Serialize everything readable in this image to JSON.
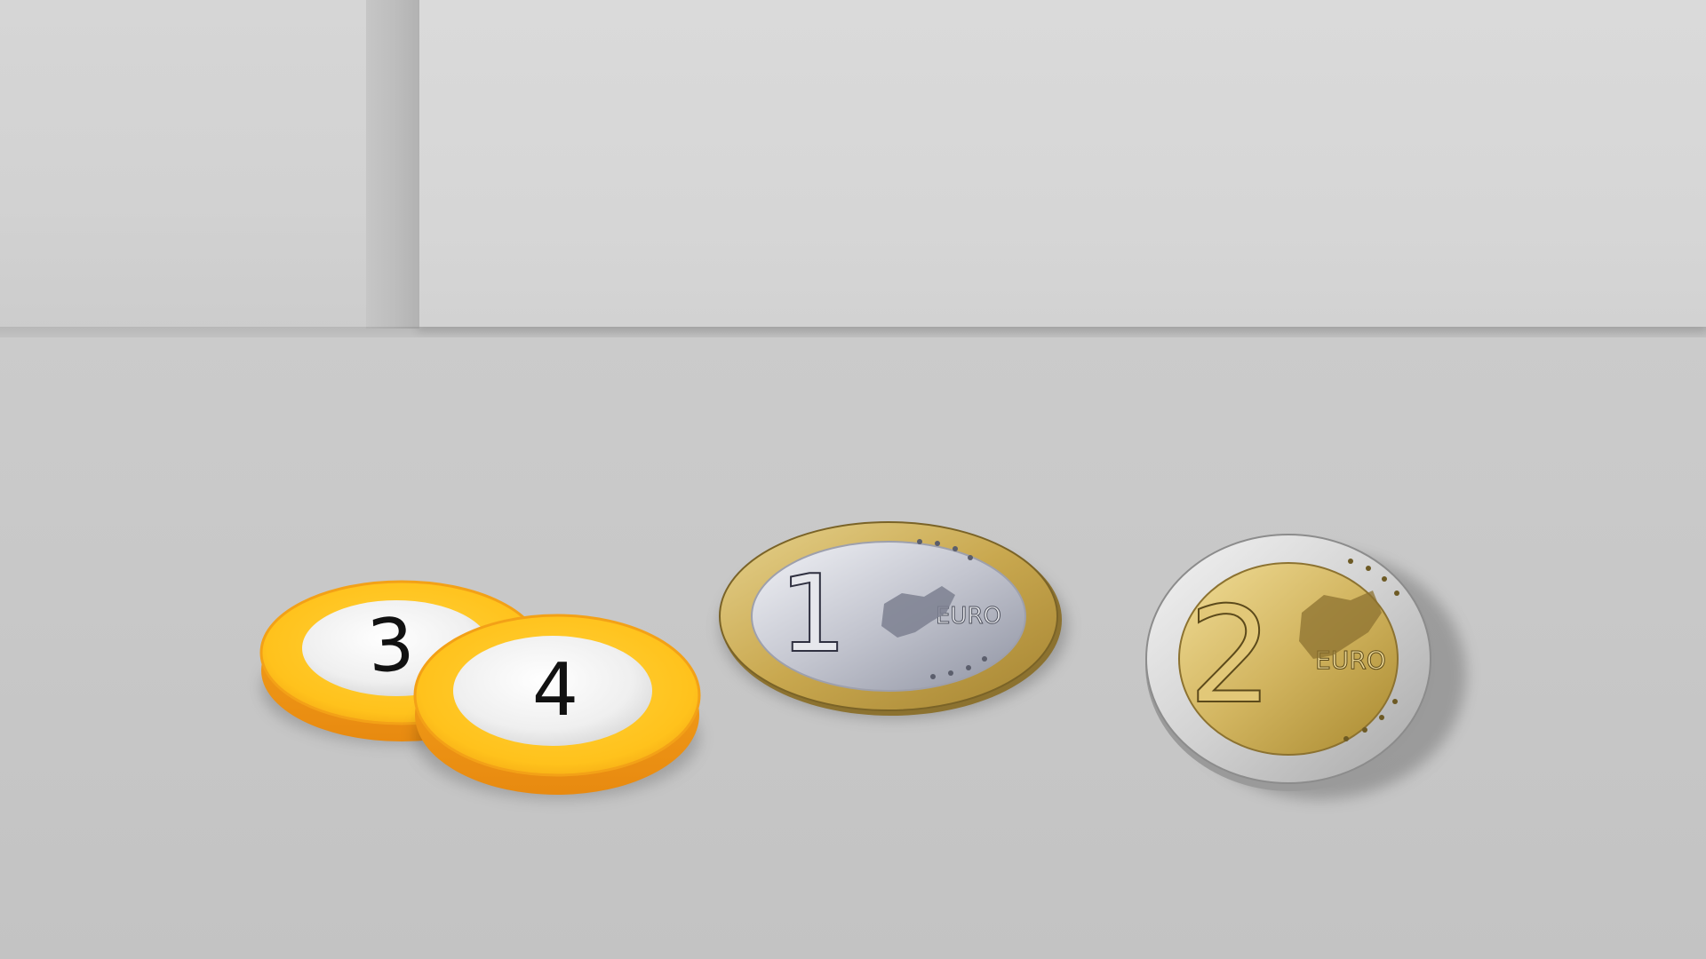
{
  "scene": {
    "background_color": "#cbcbcb"
  },
  "tokens": [
    {
      "label": "3",
      "color": "#f7b81e",
      "center_color": "#efefef"
    },
    {
      "label": "4",
      "color": "#f7b81e",
      "center_color": "#efefef"
    }
  ],
  "coins": [
    {
      "denomination": "1",
      "currency_label": "EURO",
      "ring_color": "#c9a84f",
      "center_color": "#c3c5cf"
    },
    {
      "denomination": "2",
      "currency_label": "EURO",
      "ring_color": "#d9d9d9",
      "center_color": "#d2b560"
    }
  ]
}
